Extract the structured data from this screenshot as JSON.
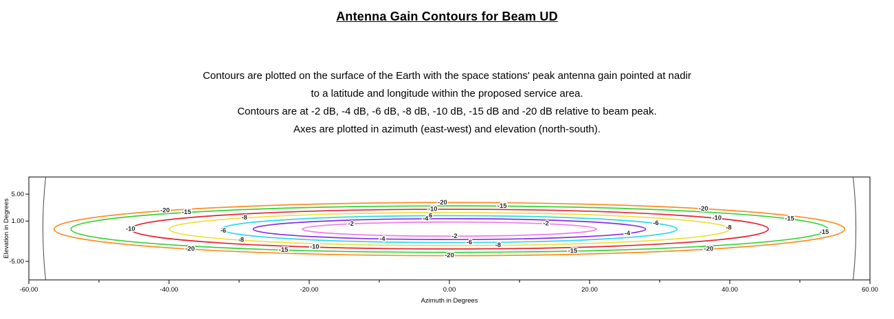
{
  "title": "Antenna Gain Contours for Beam UD",
  "description": {
    "lines": [
      "Contours are plotted on the surface of the Earth with the space stations' peak antenna gain pointed at nadir",
      "to a latitude and longitude within the proposed service area.",
      "Contours are at -2 dB, -4 dB, -6 dB, -8 dB, -10 dB, -15 dB and -20 dB relative to beam peak.",
      "Axes are plotted in azimuth (east-west) and elevation (north-south)."
    ]
  },
  "chart_data": {
    "type": "contour",
    "title": "Antenna Gain Contours for Beam UD",
    "xlabel": "Azimuth in Degrees",
    "ylabel": "Elevation in Degrees",
    "xlim": [
      -60,
      60
    ],
    "ylim": [
      -7.75,
      7.55
    ],
    "grid": false,
    "x_ticks": [
      {
        "value": -60,
        "label": "-60.00"
      },
      {
        "value": -40,
        "label": "-40.00"
      },
      {
        "value": -20,
        "label": "-20.00"
      },
      {
        "value": 0,
        "label": "0.00"
      },
      {
        "value": 20,
        "label": "20.00"
      },
      {
        "value": 40,
        "label": "40.00"
      },
      {
        "value": 60,
        "label": "60.00"
      }
    ],
    "x_minor_tick_step": 10,
    "y_ticks": [
      {
        "value": 5,
        "label": "5.00"
      },
      {
        "value": 1,
        "label": "1.00"
      },
      {
        "value": -5,
        "label": "-5.00"
      }
    ],
    "beam_center": {
      "azimuth": 0,
      "elevation": -0.2
    },
    "earth_limb": {
      "azimuth": 57.6,
      "bulge": 0.8
    },
    "contours": [
      {
        "level_db": -20,
        "label": "-20",
        "color": "#FF8C1E",
        "semi_axis_az": 56.4,
        "semi_axis_el": 3.95,
        "label_angles": [
          136,
          91,
          229,
          270,
          311,
          50
        ]
      },
      {
        "level_db": -15,
        "label": "-15",
        "color": "#33D433",
        "semi_axis_az": 54.0,
        "semi_axis_el": 3.45,
        "label_angles": [
          134,
          82,
          244,
          289,
          26,
          352
        ]
      },
      {
        "level_db": -10,
        "label": "-10",
        "color": "#E8232F",
        "semi_axis_az": 45.5,
        "semi_axis_el": 2.95,
        "label_angles": [
          180,
          93,
          245,
          33
        ]
      },
      {
        "level_db": -8,
        "label": "-8",
        "color": "#EDE13A",
        "semi_axis_az": 40.0,
        "semi_axis_el": 2.45,
        "label_angles": [
          137,
          222,
          280,
          5
        ]
      },
      {
        "level_db": -6,
        "label": "-6",
        "color": "#2BD9EA",
        "semi_axis_az": 32.5,
        "semi_axis_el": 2.0,
        "label_angles": [
          187,
          95,
          275,
          25
        ]
      },
      {
        "level_db": -4,
        "label": "-4",
        "color": "#8A2BE2",
        "semi_axis_az": 28.0,
        "semi_axis_el": 1.55,
        "label_angles": [
          97,
          250,
          335
        ]
      },
      {
        "level_db": -2,
        "label": "-2",
        "color": "#EE7AE9",
        "semi_axis_az": 21.0,
        "semi_axis_el": 1.05,
        "label_angles": [
          132,
          49,
          272
        ]
      }
    ]
  }
}
